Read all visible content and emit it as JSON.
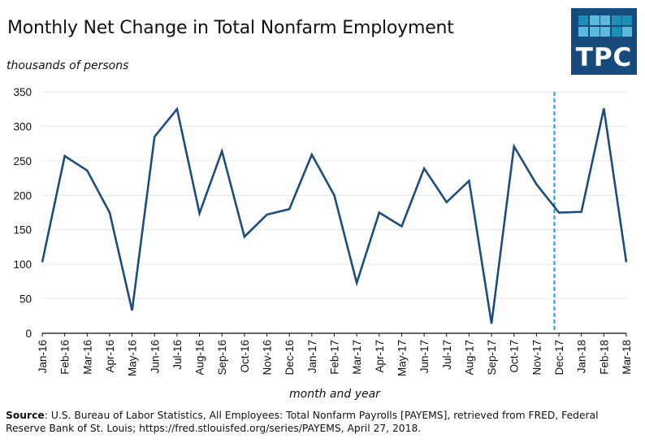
{
  "title": "Monthly Net Change in Total Nonfarm Employment",
  "logo": {
    "text": "TPC",
    "background": "#174b7d",
    "squares_row1": [
      "#1b8fb8",
      "#5bbbdc",
      "#5bbbdc",
      "#1b8fb8",
      "#1b8fb8"
    ],
    "squares_row2": [
      "#5bbbdc",
      "#5bbbdc",
      "#5bbbdc",
      "#1b8fb8",
      "#5bbbdc"
    ]
  },
  "source": {
    "label": "Source",
    "text": ": U.S. Bureau of Labor Statistics, All Employees: Total Nonfarm Payrolls [PAYEMS], retrieved from FRED, Federal Reserve Bank of St. Louis; https://fred.stlouisfed.org/series/PAYEMS, April 27, 2018."
  },
  "colors": {
    "line": "#1c4d7e",
    "marker_line": "#1f9bd1",
    "grid": "#e6e6e6",
    "axis": "#111111"
  },
  "chart_data": {
    "type": "line",
    "title": "Monthly Net Change in Total Nonfarm Employment",
    "ylabel": "thousands of persons",
    "xlabel": "month and year",
    "ylim": [
      0,
      350
    ],
    "yticks": [
      0,
      50,
      100,
      150,
      200,
      250,
      300,
      350
    ],
    "grid": true,
    "categories": [
      "Jan-16",
      "Feb-16",
      "Mar-16",
      "Apr-16",
      "May-16",
      "Jun-16",
      "Jul-16",
      "Aug-16",
      "Sep-16",
      "Oct-16",
      "Nov-16",
      "Dec-16",
      "Jan-17",
      "Feb-17",
      "Mar-17",
      "Apr-17",
      "May-17",
      "Jun-17",
      "Jul-17",
      "Aug-17",
      "Sep-17",
      "Oct-17",
      "Nov-17",
      "Dec-17",
      "Jan-18",
      "Feb-18",
      "Mar-18"
    ],
    "series": [
      {
        "name": "Monthly net change",
        "values": [
          103,
          257,
          236,
          175,
          33,
          285,
          325,
          174,
          264,
          140,
          172,
          180,
          259,
          200,
          73,
          175,
          155,
          239,
          190,
          221,
          14,
          271,
          216,
          175,
          176,
          326,
          103
        ]
      }
    ],
    "annotations": [
      {
        "type": "vertical-dashed-line",
        "x_position": 22.8,
        "description": "between Nov-17 and Dec-17"
      }
    ]
  }
}
